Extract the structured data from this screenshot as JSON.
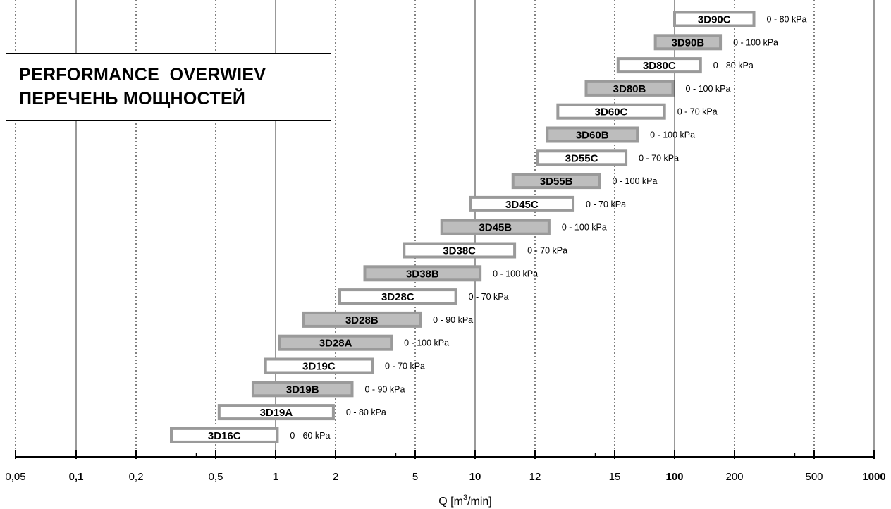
{
  "title": {
    "line1": "PERFORMANCE  OVERWIEV",
    "line2": "ПЕРЕЧЕНЬ МОЩНОСТЕЙ"
  },
  "colors": {
    "filled_bar": "#bdbdbd",
    "outline": "#9a9a9a",
    "open_bar": "#ffffff",
    "text": "#000000"
  },
  "chart_data": {
    "type": "range-bar",
    "xlabel_parts": [
      "Q [m",
      "3",
      "/min]"
    ],
    "x_tick_labels": [
      {
        "label": "0,05",
        "bold": false
      },
      {
        "label": "0,1",
        "bold": true
      },
      {
        "label": "0,2",
        "bold": false
      },
      {
        "label": "0,5",
        "bold": false
      },
      {
        "label": "1",
        "bold": true
      },
      {
        "label": "2",
        "bold": false
      },
      {
        "label": "5",
        "bold": false
      },
      {
        "label": "10",
        "bold": true
      },
      {
        "label": "12",
        "bold": false
      },
      {
        "label": "15",
        "bold": false
      },
      {
        "label": "100",
        "bold": true
      },
      {
        "label": "200",
        "bold": false
      },
      {
        "label": "500",
        "bold": false
      },
      {
        "label": "1000",
        "bold": true
      }
    ],
    "gridlines": [
      {
        "style": "dotted"
      },
      {
        "style": "solid"
      },
      {
        "style": "dotted"
      },
      {
        "style": "dotted"
      },
      {
        "style": "solid"
      },
      {
        "style": "dotted"
      },
      {
        "style": "dotted"
      },
      {
        "style": "solid"
      },
      {
        "style": "dotted"
      },
      {
        "style": "dotted"
      },
      {
        "style": "solid"
      },
      {
        "style": "dotted"
      },
      {
        "style": "dotted"
      },
      {
        "style": "solid"
      }
    ],
    "series": [
      {
        "label": "3D90C",
        "qmin": 100,
        "qmax": 250,
        "pressure": "0 - 80 kPa",
        "filled": false
      },
      {
        "label": "3D90B",
        "qmin": 80,
        "qmax": 170,
        "pressure": "0 - 100 kPa",
        "filled": true
      },
      {
        "label": "3D80C",
        "qmin": 52,
        "qmax": 135,
        "pressure": "0 - 80 kPa",
        "filled": false
      },
      {
        "label": "3D80B",
        "qmin": 36,
        "qmax": 98,
        "pressure": "0 - 100 kPa",
        "filled": true
      },
      {
        "label": "3D60C",
        "qmin": 26,
        "qmax": 89,
        "pressure": "0 - 70 kPa",
        "filled": false
      },
      {
        "label": "3D60B",
        "qmin": 23,
        "qmax": 65,
        "pressure": "0 - 100 kPa",
        "filled": true
      },
      {
        "label": "3D55C",
        "qmin": 20.5,
        "qmax": 57,
        "pressure": "0 - 70 kPa",
        "filled": false
      },
      {
        "label": "3D55B",
        "qmin": 15.5,
        "qmax": 42,
        "pressure": "0 - 100 kPa",
        "filled": true
      },
      {
        "label": "3D45C",
        "qmin": 9.5,
        "qmax": 31,
        "pressure": "0 - 70 kPa",
        "filled": false
      },
      {
        "label": "3D45B",
        "qmin": 6.8,
        "qmax": 23.5,
        "pressure": "0 - 100 kPa",
        "filled": true
      },
      {
        "label": "3D38C",
        "qmin": 4.4,
        "qmax": 15.8,
        "pressure": "0 - 70 kPa",
        "filled": false
      },
      {
        "label": "3D38B",
        "qmin": 2.8,
        "qmax": 10.6,
        "pressure": "0 - 100 kPa",
        "filled": true
      },
      {
        "label": "3D28C",
        "qmin": 2.1,
        "qmax": 8,
        "pressure": "0 - 70 kPa",
        "filled": false
      },
      {
        "label": "3D28B",
        "qmin": 1.38,
        "qmax": 5.3,
        "pressure": "0 - 90 kPa",
        "filled": true
      },
      {
        "label": "3D28A",
        "qmin": 1.05,
        "qmax": 3.8,
        "pressure": "0 - 100 kPa",
        "filled": true
      },
      {
        "label": "3D19C",
        "qmin": 0.89,
        "qmax": 3.05,
        "pressure": "0 - 70 kPa",
        "filled": false
      },
      {
        "label": "3D19B",
        "qmin": 0.77,
        "qmax": 2.42,
        "pressure": "0 - 90 kPa",
        "filled": true
      },
      {
        "label": "3D19A",
        "qmin": 0.52,
        "qmax": 1.95,
        "pressure": "0 - 80 kPa",
        "filled": false
      },
      {
        "label": "3D16C",
        "qmin": 0.3,
        "qmax": 1.02,
        "pressure": "0 - 60 kPa",
        "filled": false
      }
    ]
  }
}
